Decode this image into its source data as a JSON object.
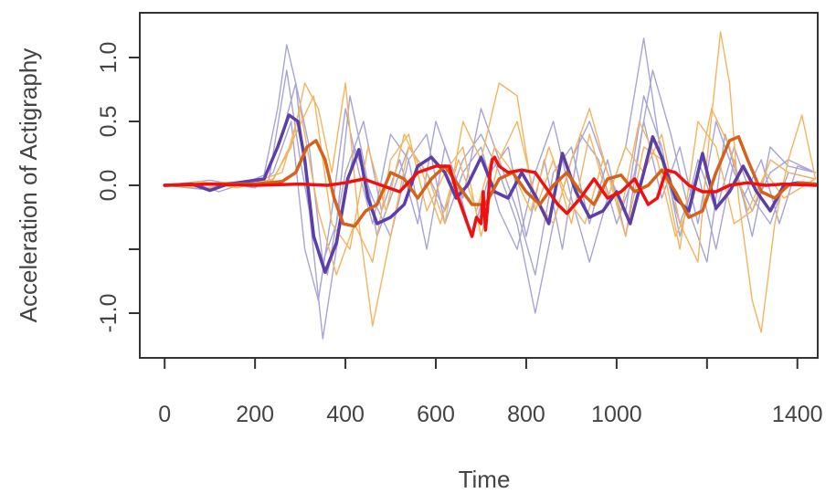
{
  "chart_data": {
    "type": "line",
    "title": "",
    "xlabel": "Time",
    "ylabel": "Acceleration of Actigraphy",
    "xlim": [
      -55,
      1445
    ],
    "ylim": [
      -1.35,
      1.35
    ],
    "xticks": [
      0,
      200,
      400,
      600,
      800,
      1000,
      1200,
      1400
    ],
    "xtick_labels": [
      "0",
      "200",
      "400",
      "600",
      "800",
      "1000",
      "",
      "1400"
    ],
    "yticks": [
      -1.0,
      -0.5,
      0.0,
      0.5,
      1.0
    ],
    "ytick_labels": [
      "-1.0",
      "",
      "0.0",
      "0.5",
      "1.0"
    ],
    "grid": false,
    "legend": "none",
    "colors": {
      "purple_light": "#a7a4d6",
      "orange_light": "#f4b45e",
      "purple": "#5b3fa6",
      "orange": "#d4621a",
      "red": "#ee1111"
    },
    "series": [
      {
        "color": "purple_light",
        "style": "thin",
        "x": [
          0,
          60,
          120,
          180,
          220,
          250,
          270,
          290,
          320,
          350,
          380,
          420,
          460,
          500,
          540,
          580,
          620,
          660,
          700,
          740,
          780,
          820,
          860,
          900,
          940,
          980,
          1020,
          1060,
          1100,
          1140,
          1180,
          1220,
          1260,
          1300,
          1340,
          1380,
          1440
        ],
        "y": [
          0,
          0.02,
          -0.05,
          0.02,
          0.08,
          0.6,
          1.1,
          0.8,
          -0.2,
          -1.2,
          -0.5,
          0.3,
          -0.1,
          -0.4,
          0.2,
          0.4,
          -0.3,
          0.1,
          0.3,
          -0.2,
          -0.5,
          0.1,
          0.5,
          -0.1,
          -0.6,
          -0.1,
          0.3,
          1.15,
          0.2,
          -0.3,
          0.1,
          -0.5,
          0.2,
          -0.4,
          0.3,
          0.15,
          0.1
        ]
      },
      {
        "color": "purple_light",
        "style": "thin",
        "x": [
          0,
          80,
          160,
          220,
          260,
          290,
          320,
          350,
          380,
          410,
          440,
          470,
          500,
          540,
          580,
          620,
          660,
          700,
          740,
          780,
          820,
          860,
          900,
          940,
          980,
          1020,
          1060,
          1100,
          1140,
          1180,
          1220,
          1260,
          1300,
          1340,
          1380,
          1440
        ],
        "y": [
          0,
          -0.03,
          0.02,
          0.05,
          0.4,
          0.8,
          0.3,
          -0.6,
          -0.3,
          0.7,
          0.2,
          -0.4,
          -0.1,
          0.3,
          0.1,
          -0.2,
          0.2,
          0.4,
          0.1,
          -0.3,
          -1.0,
          -0.3,
          0.2,
          0.5,
          0.1,
          -0.2,
          0.7,
          0.3,
          -0.4,
          0.2,
          -0.2,
          0.3,
          -0.1,
          -0.3,
          0.1,
          0.05
        ]
      },
      {
        "color": "purple_light",
        "style": "thin",
        "x": [
          0,
          100,
          200,
          240,
          280,
          310,
          340,
          370,
          400,
          430,
          460,
          500,
          540,
          580,
          620,
          660,
          700,
          740,
          780,
          820,
          860,
          900,
          940,
          980,
          1020,
          1060,
          1100,
          1140,
          1180,
          1220,
          1260,
          1300,
          1340,
          1380,
          1440
        ],
        "y": [
          0,
          0.04,
          -0.02,
          0.1,
          0.5,
          -0.5,
          -0.9,
          -0.2,
          0.6,
          0.1,
          -0.3,
          0.4,
          0.2,
          -0.5,
          0.3,
          -0.1,
          0.6,
          0.2,
          -0.2,
          -0.7,
          0.1,
          0.3,
          -0.3,
          0.2,
          -0.4,
          0.5,
          -0.1,
          0.3,
          -0.3,
          0.5,
          0.1,
          -0.2,
          0.1,
          0.2,
          0.1
        ]
      },
      {
        "color": "purple_light",
        "style": "thin",
        "x": [
          0,
          120,
          230,
          270,
          300,
          330,
          360,
          400,
          440,
          480,
          520,
          560,
          600,
          640,
          680,
          720,
          760,
          800,
          840,
          880,
          920,
          960,
          1000,
          1040,
          1080,
          1120,
          1160,
          1200,
          1240,
          1280,
          1320,
          1360,
          1400,
          1440
        ],
        "y": [
          0,
          0.02,
          0.03,
          0.9,
          0.2,
          -0.4,
          -0.7,
          0.1,
          0.5,
          -0.2,
          0.2,
          -0.3,
          0.5,
          0.1,
          -0.4,
          0.1,
          0.3,
          -0.4,
          0.2,
          -0.5,
          0.4,
          0.2,
          -0.3,
          0.1,
          0.9,
          0.4,
          -0.2,
          -0.6,
          0.4,
          -0.1,
          0.2,
          -0.3,
          0.15,
          0.1
        ]
      },
      {
        "color": "orange_light",
        "style": "thin",
        "x": [
          0,
          80,
          160,
          240,
          280,
          310,
          340,
          370,
          400,
          430,
          460,
          500,
          540,
          580,
          620,
          660,
          700,
          740,
          780,
          820,
          860,
          900,
          940,
          980,
          1020,
          1060,
          1100,
          1140,
          1180,
          1200,
          1230,
          1250,
          1270,
          1300,
          1320,
          1350,
          1380,
          1410,
          1440
        ],
        "y": [
          0,
          0.03,
          -0.02,
          0.05,
          0.3,
          0.8,
          0.6,
          0.1,
          0.8,
          -0.3,
          -1.1,
          -0.4,
          0.3,
          0.1,
          -0.3,
          0.5,
          0.2,
          0.8,
          0.7,
          -0.2,
          0.2,
          -0.3,
          0.4,
          -0.1,
          0.3,
          0.1,
          0.4,
          -0.3,
          -0.6,
          0.2,
          1.2,
          0.8,
          -0.1,
          -0.9,
          -1.15,
          -0.3,
          0.2,
          0.55,
          0.05
        ]
      },
      {
        "color": "orange_light",
        "style": "thin",
        "x": [
          0,
          100,
          200,
          260,
          300,
          340,
          380,
          420,
          460,
          500,
          540,
          580,
          620,
          660,
          700,
          740,
          780,
          820,
          860,
          900,
          940,
          980,
          1020,
          1060,
          1100,
          1140,
          1180,
          1220,
          1260,
          1300,
          1340,
          1380,
          1440
        ],
        "y": [
          0,
          -0.02,
          0.03,
          0.1,
          0.6,
          -0.2,
          -0.7,
          -0.3,
          -0.6,
          0.2,
          0.4,
          -0.2,
          0.1,
          0.3,
          -0.4,
          0.2,
          0.5,
          -0.1,
          -0.3,
          0.2,
          0.6,
          0.1,
          -0.4,
          0.3,
          0.2,
          -0.5,
          0.5,
          0.3,
          -0.3,
          -0.2,
          0.2,
          0.1,
          0.05
        ]
      },
      {
        "color": "orange_light",
        "style": "thin",
        "x": [
          0,
          120,
          240,
          290,
          330,
          370,
          410,
          450,
          490,
          530,
          570,
          610,
          650,
          690,
          730,
          770,
          810,
          850,
          890,
          930,
          970,
          1010,
          1050,
          1090,
          1130,
          1170,
          1210,
          1250,
          1290,
          1330,
          1370,
          1440
        ],
        "y": [
          0,
          0.02,
          0.04,
          0.4,
          0.7,
          -0.3,
          -0.5,
          0.3,
          -0.2,
          0.4,
          0.1,
          -0.3,
          0.2,
          -0.2,
          0.3,
          0.1,
          -0.2,
          0.3,
          -0.1,
          -0.3,
          0.2,
          -0.2,
          0.5,
          0.2,
          -0.4,
          -0.1,
          0.6,
          0.3,
          -0.2,
          0.1,
          -0.1,
          0.05
        ]
      },
      {
        "color": "purple",
        "style": "thick",
        "x": [
          0,
          60,
          100,
          140,
          180,
          220,
          250,
          275,
          295,
          310,
          330,
          355,
          380,
          405,
          430,
          450,
          470,
          500,
          530,
          560,
          590,
          620,
          645,
          670,
          700,
          730,
          760,
          790,
          820,
          850,
          880,
          910,
          940,
          970,
          1000,
          1030,
          1060,
          1080,
          1100,
          1130,
          1160,
          1190,
          1220,
          1250,
          1280,
          1310,
          1340,
          1370,
          1400,
          1440
        ],
        "y": [
          0,
          0.01,
          -0.04,
          0.01,
          0.03,
          0.05,
          0.3,
          0.55,
          0.5,
          0.2,
          -0.4,
          -0.68,
          -0.45,
          0.05,
          0.28,
          -0.1,
          -0.3,
          -0.25,
          -0.15,
          0.15,
          0.22,
          0.1,
          -0.1,
          0.0,
          0.22,
          -0.05,
          -0.1,
          0.1,
          -0.08,
          -0.3,
          0.25,
          -0.05,
          -0.25,
          -0.2,
          -0.05,
          -0.3,
          0.1,
          0.38,
          0.22,
          -0.1,
          -0.2,
          0.25,
          -0.18,
          -0.05,
          0.15,
          -0.05,
          -0.2,
          0.0,
          0.02,
          0.01
        ]
      },
      {
        "color": "orange",
        "style": "thick",
        "x": [
          0,
          100,
          200,
          260,
          290,
          315,
          335,
          355,
          375,
          395,
          420,
          445,
          470,
          500,
          530,
          560,
          590,
          620,
          650,
          680,
          710,
          740,
          770,
          800,
          830,
          860,
          890,
          920,
          950,
          980,
          1010,
          1040,
          1070,
          1100,
          1130,
          1160,
          1190,
          1220,
          1250,
          1270,
          1290,
          1320,
          1350,
          1380,
          1410,
          1440
        ],
        "y": [
          0,
          0.01,
          0.01,
          0.03,
          0.1,
          0.3,
          0.35,
          0.2,
          -0.1,
          -0.3,
          -0.32,
          -0.2,
          -0.15,
          0.1,
          0.05,
          -0.1,
          0.05,
          0.15,
          0.0,
          -0.15,
          -0.15,
          0.05,
          0.1,
          -0.05,
          -0.15,
          0.0,
          0.1,
          -0.05,
          -0.15,
          0.05,
          0.08,
          -0.05,
          0.0,
          0.12,
          -0.05,
          -0.25,
          -0.2,
          0.1,
          0.35,
          0.38,
          0.2,
          -0.05,
          -0.1,
          0.0,
          0.02,
          0.01
        ]
      },
      {
        "color": "red",
        "style": "thick",
        "x": [
          0,
          100,
          200,
          300,
          360,
          400,
          440,
          480,
          520,
          560,
          600,
          630,
          650,
          670,
          680,
          690,
          700,
          705,
          710,
          715,
          720,
          725,
          730,
          740,
          760,
          790,
          820,
          850,
          870,
          890,
          920,
          950,
          980,
          1010,
          1040,
          1070,
          1090,
          1110,
          1130,
          1160,
          1190,
          1220,
          1250,
          1290,
          1330,
          1370,
          1440
        ],
        "y": [
          0,
          0.01,
          0.0,
          0.01,
          0.0,
          0.02,
          0.05,
          0.0,
          -0.05,
          0.1,
          0.15,
          0.15,
          -0.1,
          -0.3,
          -0.4,
          -0.25,
          -0.3,
          -0.05,
          -0.35,
          -0.15,
          0.1,
          0.2,
          0.22,
          0.15,
          0.1,
          0.12,
          0.1,
          -0.05,
          -0.15,
          -0.22,
          -0.1,
          0.05,
          -0.1,
          -0.05,
          0.05,
          -0.15,
          -0.1,
          0.12,
          0.1,
          0.0,
          -0.05,
          -0.05,
          0.0,
          0.02,
          0.0,
          0.01,
          0.0
        ]
      }
    ]
  }
}
